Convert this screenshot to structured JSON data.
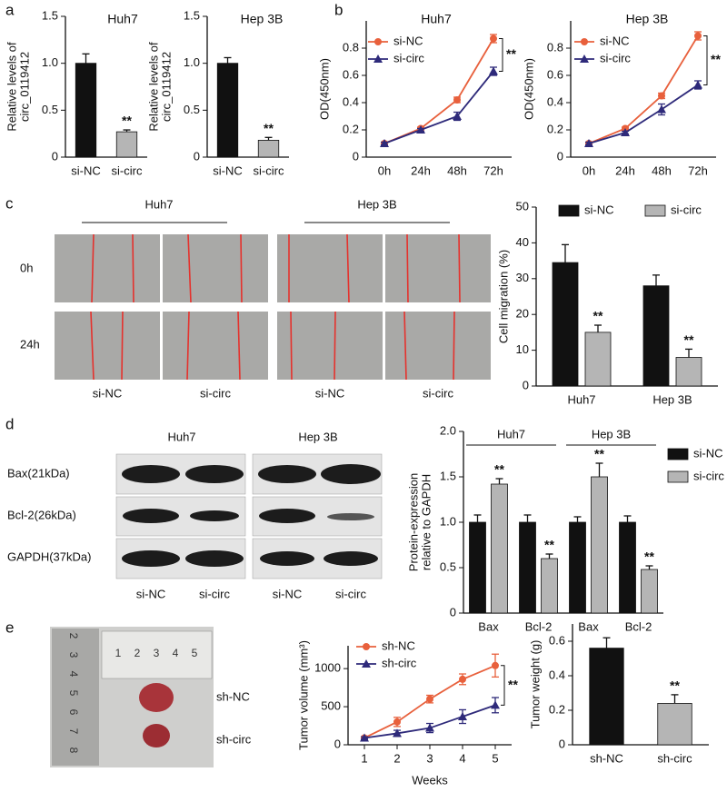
{
  "panel_labels": [
    "a",
    "b",
    "c",
    "d",
    "e"
  ],
  "migration": {
    "cell_lines": [
      "Huh7",
      "Hep 3B"
    ],
    "times": [
      "0h",
      "24h"
    ],
    "groups": [
      "si-NC",
      "si-circ",
      "si-NC",
      "si-circ"
    ]
  },
  "western": {
    "cell_lines": [
      "Huh7",
      "Hep 3B"
    ],
    "proteins": [
      "Bax(21kDa)",
      "Bcl-2(26kDa)",
      "GAPDH(37kDa)"
    ],
    "groups": [
      "si-NC",
      "si-circ",
      "si-NC",
      "si-circ"
    ]
  },
  "tumor_photo": {
    "ruler_top": [
      1,
      2,
      3,
      4,
      5
    ],
    "ruler_side": [
      2,
      3,
      4,
      5,
      6,
      7,
      8
    ],
    "groups": [
      "sh-NC",
      "sh-circ"
    ]
  },
  "chart_data": [
    {
      "type": "bar",
      "title": "Huh7",
      "ylabel": [
        "Relative levels of",
        "circ_0119412"
      ],
      "categories": [
        "si-NC",
        "si-circ"
      ],
      "values": [
        1.0,
        0.27
      ],
      "errors": [
        0.1,
        0.02
      ],
      "colors": [
        "#111111",
        "#b5b5b5"
      ],
      "annotations": [
        null,
        "**"
      ],
      "ylim": [
        0,
        1.5
      ],
      "yticks": [
        0,
        0.5,
        {
          "value": 1,
          "label": "1.0"
        },
        1.5
      ]
    },
    {
      "type": "bar",
      "title": "Hep 3B",
      "ylabel": [
        "Relative levels of",
        "circ_0119412"
      ],
      "categories": [
        "si-NC",
        "si-circ"
      ],
      "values": [
        1.0,
        0.18
      ],
      "errors": [
        0.06,
        0.03
      ],
      "colors": [
        "#111111",
        "#b5b5b5"
      ],
      "annotations": [
        null,
        "**"
      ],
      "ylim": [
        0,
        1.5
      ],
      "yticks": [
        0,
        0.5,
        {
          "value": 1,
          "label": "1.0"
        },
        1.5
      ]
    },
    {
      "type": "line",
      "title": "Huh7",
      "ylabel": "OD(450nm)",
      "categories": [
        "0h",
        "24h",
        "48h",
        "72h"
      ],
      "series": [
        {
          "name": "si-NC",
          "color": "#e8603c",
          "marker": "circle",
          "values": [
            0.1,
            0.21,
            0.42,
            0.87
          ],
          "errors": [
            0.01,
            0.01,
            0.02,
            0.03
          ]
        },
        {
          "name": "si-circ",
          "color": "#2e2a7a",
          "marker": "triangle",
          "values": [
            0.1,
            0.2,
            0.3,
            0.63
          ],
          "errors": [
            0.01,
            0.01,
            0.03,
            0.03
          ]
        }
      ],
      "annotation": "**",
      "legend": "upper left",
      "ylim": [
        0,
        1
      ],
      "yticks": [
        0,
        0.2,
        0.4,
        0.6,
        0.8
      ]
    },
    {
      "type": "line",
      "title": "Hep 3B",
      "ylabel": "OD(450nm)",
      "categories": [
        "0h",
        "24h",
        "48h",
        "72h"
      ],
      "series": [
        {
          "name": "si-NC",
          "color": "#e8603c",
          "marker": "circle",
          "values": [
            0.1,
            0.21,
            0.45,
            0.89
          ],
          "errors": [
            0.01,
            0.01,
            0.02,
            0.03
          ]
        },
        {
          "name": "si-circ",
          "color": "#2e2a7a",
          "marker": "triangle",
          "values": [
            0.1,
            0.18,
            0.35,
            0.53
          ],
          "errors": [
            0.01,
            0.01,
            0.04,
            0.03
          ]
        }
      ],
      "annotation": "**",
      "legend": "upper left",
      "ylim": [
        0,
        1
      ],
      "yticks": [
        0,
        0.2,
        0.4,
        0.6,
        0.8
      ]
    },
    {
      "type": "bar",
      "ylabel": "Cell migration (%)",
      "categories": [
        "Huh7",
        "Hep 3B"
      ],
      "series": [
        {
          "name": "si-NC",
          "color": "#111111",
          "values": [
            34.5,
            28
          ],
          "errors": [
            5,
            3
          ]
        },
        {
          "name": "si-circ",
          "color": "#b5b5b5",
          "values": [
            15,
            8
          ],
          "errors": [
            2,
            2.3
          ],
          "annotations": [
            "**",
            "**"
          ]
        }
      ],
      "legend": "top",
      "ylim": [
        0,
        50
      ],
      "yticks": [
        0,
        10,
        20,
        30,
        40,
        50
      ]
    },
    {
      "type": "bar",
      "ylabel": [
        "Protein-expression",
        "relative to GAPDH"
      ],
      "categories": [
        "Bax",
        "Bcl-2",
        "Bax",
        "Bcl-2"
      ],
      "group_labels": [
        "Huh7",
        "Hep 3B"
      ],
      "series": [
        {
          "name": "si-NC",
          "color": "#111111",
          "values": [
            1,
            1,
            1,
            1
          ],
          "errors": [
            0.08,
            0.08,
            0.06,
            0.07
          ]
        },
        {
          "name": "si-circ",
          "color": "#b5b5b5",
          "values": [
            1.42,
            0.6,
            1.5,
            0.48
          ],
          "errors": [
            0.06,
            0.05,
            0.15,
            0.04
          ],
          "annotations": [
            "**",
            "**",
            "**",
            "**"
          ]
        }
      ],
      "legend": "right",
      "ylim": [
        0,
        2
      ],
      "yticks": [
        0,
        0.5,
        {
          "value": 1,
          "label": "1.0"
        },
        1.5,
        {
          "value": 2,
          "label": "2.0"
        }
      ]
    },
    {
      "type": "line",
      "ylabel": "Tumor volume (mm³)",
      "xlabel": "Weeks",
      "x": [
        1,
        2,
        3,
        4,
        5
      ],
      "series": [
        {
          "name": "sh-NC",
          "color": "#e8603c",
          "marker": "circle",
          "values": [
            90,
            300,
            600,
            860,
            1040
          ],
          "errors": [
            15,
            60,
            50,
            70,
            150
          ]
        },
        {
          "name": "sh-circ",
          "color": "#2e2a7a",
          "marker": "triangle",
          "values": [
            90,
            150,
            220,
            370,
            520
          ],
          "errors": [
            15,
            40,
            60,
            90,
            100
          ]
        }
      ],
      "annotation": "**",
      "legend": "upper left",
      "xlim": [
        0.5,
        5.5
      ],
      "xticks": [
        1,
        2,
        3,
        4,
        5
      ],
      "ylim": [
        0,
        1300
      ],
      "yticks": [
        0,
        500,
        1000
      ]
    },
    {
      "type": "bar",
      "ylabel": "Tumor weight (g)",
      "categories": [
        "sh-NC",
        "sh-circ"
      ],
      "values": [
        0.56,
        0.24
      ],
      "errors": [
        0.06,
        0.05
      ],
      "colors": [
        "#111111",
        "#b5b5b5"
      ],
      "annotations": [
        null,
        "**"
      ],
      "ylim": [
        0,
        0.7
      ],
      "yticks": [
        0,
        0.2,
        0.4,
        0.6
      ]
    }
  ]
}
